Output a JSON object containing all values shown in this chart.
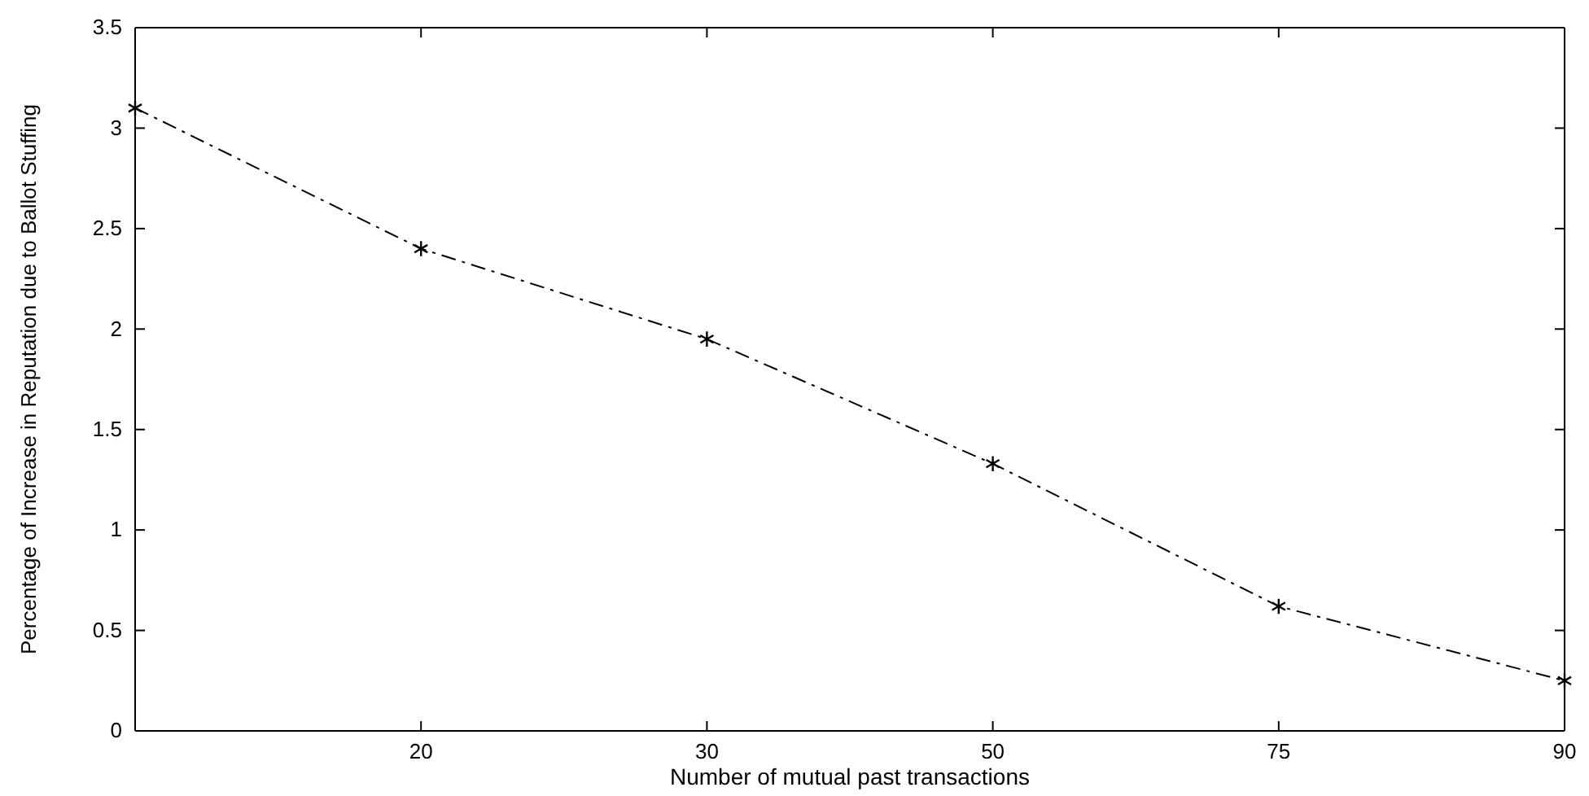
{
  "chart_data": {
    "type": "line",
    "xlabel": "Number of mutual past transactions",
    "ylabel": "Percentage of Increase in Reputation due to Ballot Stuffing",
    "categories": [
      null,
      "20",
      "30",
      "50",
      "75",
      "90"
    ],
    "series": [
      {
        "color": "#000000",
        "values": [
          3.1,
          2.4,
          1.95,
          1.33,
          0.62,
          0.25
        ]
      }
    ],
    "ylim": [
      0,
      3.5
    ],
    "yticks": [
      0,
      {
        "value": 0.5,
        "label": "0.5"
      },
      1,
      {
        "value": 1.5,
        "label": "1.5"
      },
      2,
      {
        "value": 2.5,
        "label": "2.5"
      },
      3,
      {
        "value": 3.5,
        "label": "3.5"
      }
    ],
    "marker": "cross",
    "line_style": "dashed"
  }
}
